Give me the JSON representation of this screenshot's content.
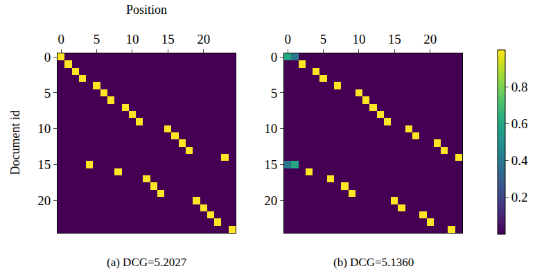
{
  "chart_data": [
    {
      "type": "heatmap",
      "title": "(a) DCG=5.2027",
      "x_label": "Position",
      "y_label": "Document id",
      "xlim": [
        -0.5,
        24.5
      ],
      "ylim": [
        24.5,
        -0.5
      ],
      "xticks": [
        0,
        5,
        10,
        15,
        20
      ],
      "yticks": [
        0,
        5,
        10,
        15,
        20
      ],
      "cells": [
        [
          1,
          0,
          0,
          0,
          0,
          0,
          0,
          0,
          0,
          0,
          0,
          0,
          0,
          0,
          0,
          0,
          0,
          0,
          0,
          0,
          0,
          0,
          0,
          0,
          0
        ],
        [
          0,
          1,
          0,
          0,
          0,
          0,
          0,
          0,
          0,
          0,
          0,
          0,
          0,
          0,
          0,
          0,
          0,
          0,
          0,
          0,
          0,
          0,
          0,
          0,
          0
        ],
        [
          0,
          0,
          1,
          0,
          0,
          0,
          0,
          0,
          0,
          0,
          0,
          0,
          0,
          0,
          0,
          0,
          0,
          0,
          0,
          0,
          0,
          0,
          0,
          0,
          0
        ],
        [
          0,
          0,
          0,
          1,
          0,
          0,
          0,
          0,
          0,
          0,
          0,
          0,
          0,
          0,
          0,
          0,
          0,
          0,
          0,
          0,
          0,
          0,
          0,
          0,
          0
        ],
        [
          0,
          0,
          0,
          0,
          0,
          1,
          0,
          0,
          0,
          0,
          0,
          0,
          0,
          0,
          0,
          0,
          0,
          0,
          0,
          0,
          0,
          0,
          0,
          0,
          0
        ],
        [
          0,
          0,
          0,
          0,
          0,
          0,
          1,
          0,
          0,
          0,
          0,
          0,
          0,
          0,
          0,
          0,
          0,
          0,
          0,
          0,
          0,
          0,
          0,
          0,
          0
        ],
        [
          0,
          0,
          0,
          0,
          0,
          0,
          0,
          1,
          0,
          0,
          0,
          0,
          0,
          0,
          0,
          0,
          0,
          0,
          0,
          0,
          0,
          0,
          0,
          0,
          0
        ],
        [
          0,
          0,
          0,
          0,
          0,
          0,
          0,
          0,
          0,
          1,
          0,
          0,
          0,
          0,
          0,
          0,
          0,
          0,
          0,
          0,
          0,
          0,
          0,
          0,
          0
        ],
        [
          0,
          0,
          0,
          0,
          0,
          0,
          0,
          0,
          0,
          0,
          1,
          0,
          0,
          0,
          0,
          0,
          0,
          0,
          0,
          0,
          0,
          0,
          0,
          0,
          0
        ],
        [
          0,
          0,
          0,
          0,
          0,
          0,
          0,
          0,
          0,
          0,
          0,
          1,
          0,
          0,
          0,
          0,
          0,
          0,
          0,
          0,
          0,
          0,
          0,
          0,
          0
        ],
        [
          0,
          0,
          0,
          0,
          0,
          0,
          0,
          0,
          0,
          0,
          0,
          0,
          0,
          0,
          0,
          1,
          0,
          0,
          0,
          0,
          0,
          0,
          0,
          0,
          0
        ],
        [
          0,
          0,
          0,
          0,
          0,
          0,
          0,
          0,
          0,
          0,
          0,
          0,
          0,
          0,
          0,
          0,
          1,
          0,
          0,
          0,
          0,
          0,
          0,
          0,
          0
        ],
        [
          0,
          0,
          0,
          0,
          0,
          0,
          0,
          0,
          0,
          0,
          0,
          0,
          0,
          0,
          0,
          0,
          0,
          1,
          0,
          0,
          0,
          0,
          0,
          0,
          0
        ],
        [
          0,
          0,
          0,
          0,
          0,
          0,
          0,
          0,
          0,
          0,
          0,
          0,
          0,
          0,
          0,
          0,
          0,
          0,
          1,
          0,
          0,
          0,
          0,
          0,
          0
        ],
        [
          0,
          0,
          0,
          0,
          0,
          0,
          0,
          0,
          0,
          0,
          0,
          0,
          0,
          0,
          0,
          0,
          0,
          0,
          0,
          0,
          0,
          0,
          0,
          1,
          0
        ],
        [
          0,
          0,
          0,
          0,
          1,
          0,
          0,
          0,
          0,
          0,
          0,
          0,
          0,
          0,
          0,
          0,
          0,
          0,
          0,
          0,
          0,
          0,
          0,
          0,
          0
        ],
        [
          0,
          0,
          0,
          0,
          0,
          0,
          0,
          0,
          1,
          0,
          0,
          0,
          0,
          0,
          0,
          0,
          0,
          0,
          0,
          0,
          0,
          0,
          0,
          0,
          0
        ],
        [
          0,
          0,
          0,
          0,
          0,
          0,
          0,
          0,
          0,
          0,
          0,
          0,
          1,
          0,
          0,
          0,
          0,
          0,
          0,
          0,
          0,
          0,
          0,
          0,
          0
        ],
        [
          0,
          0,
          0,
          0,
          0,
          0,
          0,
          0,
          0,
          0,
          0,
          0,
          0,
          1,
          0,
          0,
          0,
          0,
          0,
          0,
          0,
          0,
          0,
          0,
          0
        ],
        [
          0,
          0,
          0,
          0,
          0,
          0,
          0,
          0,
          0,
          0,
          0,
          0,
          0,
          0,
          1,
          0,
          0,
          0,
          0,
          0,
          0,
          0,
          0,
          0,
          0
        ],
        [
          0,
          0,
          0,
          0,
          0,
          0,
          0,
          0,
          0,
          0,
          0,
          0,
          0,
          0,
          0,
          0,
          0,
          0,
          0,
          1,
          0,
          0,
          0,
          0,
          0
        ],
        [
          0,
          0,
          0,
          0,
          0,
          0,
          0,
          0,
          0,
          0,
          0,
          0,
          0,
          0,
          0,
          0,
          0,
          0,
          0,
          0,
          1,
          0,
          0,
          0,
          0
        ],
        [
          0,
          0,
          0,
          0,
          0,
          0,
          0,
          0,
          0,
          0,
          0,
          0,
          0,
          0,
          0,
          0,
          0,
          0,
          0,
          0,
          0,
          1,
          0,
          0,
          0
        ],
        [
          0,
          0,
          0,
          0,
          0,
          0,
          0,
          0,
          0,
          0,
          0,
          0,
          0,
          0,
          0,
          0,
          0,
          0,
          0,
          0,
          0,
          0,
          1,
          0,
          0
        ],
        [
          0,
          0,
          0,
          0,
          0,
          0,
          0,
          0,
          0,
          0,
          0,
          0,
          0,
          0,
          0,
          0,
          0,
          0,
          0,
          0,
          0,
          0,
          0,
          0,
          1
        ]
      ]
    },
    {
      "type": "heatmap",
      "title": "(b) DCG=5.1360",
      "xlim": [
        -0.5,
        24.5
      ],
      "ylim": [
        24.5,
        -0.5
      ],
      "xticks": [
        0,
        5,
        10,
        15,
        20
      ],
      "yticks": [
        0,
        5,
        10,
        15,
        20
      ],
      "colorbar": {
        "range": [
          0,
          1
        ],
        "ticks": [
          0.2,
          0.4,
          0.6,
          0.8
        ]
      },
      "cells": [
        [
          0.6,
          0.4,
          0,
          0,
          0,
          0,
          0,
          0,
          0,
          0,
          0,
          0,
          0,
          0,
          0,
          0,
          0,
          0,
          0,
          0,
          0,
          0,
          0,
          0,
          0
        ],
        [
          0,
          0,
          1,
          0,
          0,
          0,
          0,
          0,
          0,
          0,
          0,
          0,
          0,
          0,
          0,
          0,
          0,
          0,
          0,
          0,
          0,
          0,
          0,
          0,
          0
        ],
        [
          0,
          0,
          0,
          0,
          1,
          0,
          0,
          0,
          0,
          0,
          0,
          0,
          0,
          0,
          0,
          0,
          0,
          0,
          0,
          0,
          0,
          0,
          0,
          0,
          0
        ],
        [
          0,
          0,
          0,
          0,
          0,
          1,
          0,
          0,
          0,
          0,
          0,
          0,
          0,
          0,
          0,
          0,
          0,
          0,
          0,
          0,
          0,
          0,
          0,
          0,
          0
        ],
        [
          0,
          0,
          0,
          0,
          0,
          0,
          0,
          1,
          0,
          0,
          0,
          0,
          0,
          0,
          0,
          0,
          0,
          0,
          0,
          0,
          0,
          0,
          0,
          0,
          0
        ],
        [
          0,
          0,
          0,
          0,
          0,
          0,
          0,
          0,
          0,
          0,
          1,
          0,
          0,
          0,
          0,
          0,
          0,
          0,
          0,
          0,
          0,
          0,
          0,
          0,
          0
        ],
        [
          0,
          0,
          0,
          0,
          0,
          0,
          0,
          0,
          0,
          0,
          0,
          1,
          0,
          0,
          0,
          0,
          0,
          0,
          0,
          0,
          0,
          0,
          0,
          0,
          0
        ],
        [
          0,
          0,
          0,
          0,
          0,
          0,
          0,
          0,
          0,
          0,
          0,
          0,
          1,
          0,
          0,
          0,
          0,
          0,
          0,
          0,
          0,
          0,
          0,
          0,
          0
        ],
        [
          0,
          0,
          0,
          0,
          0,
          0,
          0,
          0,
          0,
          0,
          0,
          0,
          0,
          1,
          0,
          0,
          0,
          0,
          0,
          0,
          0,
          0,
          0,
          0,
          0
        ],
        [
          0,
          0,
          0,
          0,
          0,
          0,
          0,
          0,
          0,
          0,
          0,
          0,
          0,
          0,
          1,
          0,
          0,
          0,
          0,
          0,
          0,
          0,
          0,
          0,
          0
        ],
        [
          0,
          0,
          0,
          0,
          0,
          0,
          0,
          0,
          0,
          0,
          0,
          0,
          0,
          0,
          0,
          0,
          0,
          1,
          0,
          0,
          0,
          0,
          0,
          0,
          0
        ],
        [
          0,
          0,
          0,
          0,
          0,
          0,
          0,
          0,
          0,
          0,
          0,
          0,
          0,
          0,
          0,
          0,
          0,
          0,
          1,
          0,
          0,
          0,
          0,
          0,
          0
        ],
        [
          0,
          0,
          0,
          0,
          0,
          0,
          0,
          0,
          0,
          0,
          0,
          0,
          0,
          0,
          0,
          0,
          0,
          0,
          0,
          0,
          0,
          1,
          0,
          0,
          0
        ],
        [
          0,
          0,
          0,
          0,
          0,
          0,
          0,
          0,
          0,
          0,
          0,
          0,
          0,
          0,
          0,
          0,
          0,
          0,
          0,
          0,
          0,
          0,
          1,
          0,
          0
        ],
        [
          0,
          0,
          0,
          0,
          0,
          0,
          0,
          0,
          0,
          0,
          0,
          0,
          0,
          0,
          0,
          0,
          0,
          0,
          0,
          0,
          0,
          0,
          0,
          0,
          1
        ],
        [
          0.4,
          0.6,
          0,
          0,
          0,
          0,
          0,
          0,
          0,
          0,
          0,
          0,
          0,
          0,
          0,
          0,
          0,
          0,
          0,
          0,
          0,
          0,
          0,
          0,
          0
        ],
        [
          0,
          0,
          0,
          1,
          0,
          0,
          0,
          0,
          0,
          0,
          0,
          0,
          0,
          0,
          0,
          0,
          0,
          0,
          0,
          0,
          0,
          0,
          0,
          0,
          0
        ],
        [
          0,
          0,
          0,
          0,
          0,
          0,
          1,
          0,
          0,
          0,
          0,
          0,
          0,
          0,
          0,
          0,
          0,
          0,
          0,
          0,
          0,
          0,
          0,
          0,
          0
        ],
        [
          0,
          0,
          0,
          0,
          0,
          0,
          0,
          0,
          1,
          0,
          0,
          0,
          0,
          0,
          0,
          0,
          0,
          0,
          0,
          0,
          0,
          0,
          0,
          0,
          0
        ],
        [
          0,
          0,
          0,
          0,
          0,
          0,
          0,
          0,
          0,
          1,
          0,
          0,
          0,
          0,
          0,
          0,
          0,
          0,
          0,
          0,
          0,
          0,
          0,
          0,
          0
        ],
        [
          0,
          0,
          0,
          0,
          0,
          0,
          0,
          0,
          0,
          0,
          0,
          0,
          0,
          0,
          0,
          1,
          0,
          0,
          0,
          0,
          0,
          0,
          0,
          0,
          0
        ],
        [
          0,
          0,
          0,
          0,
          0,
          0,
          0,
          0,
          0,
          0,
          0,
          0,
          0,
          0,
          0,
          0,
          1,
          0,
          0,
          0,
          0,
          0,
          0,
          0,
          0
        ],
        [
          0,
          0,
          0,
          0,
          0,
          0,
          0,
          0,
          0,
          0,
          0,
          0,
          0,
          0,
          0,
          0,
          0,
          0,
          0,
          1,
          0,
          0,
          0,
          0,
          0
        ],
        [
          0,
          0,
          0,
          0,
          0,
          0,
          0,
          0,
          0,
          0,
          0,
          0,
          0,
          0,
          0,
          0,
          0,
          0,
          0,
          0,
          1,
          0,
          0,
          0,
          0
        ],
        [
          0,
          0,
          0,
          0,
          0,
          0,
          0,
          0,
          0,
          0,
          0,
          0,
          0,
          0,
          0,
          0,
          0,
          0,
          0,
          0,
          0,
          0,
          0,
          1,
          0
        ]
      ]
    }
  ]
}
